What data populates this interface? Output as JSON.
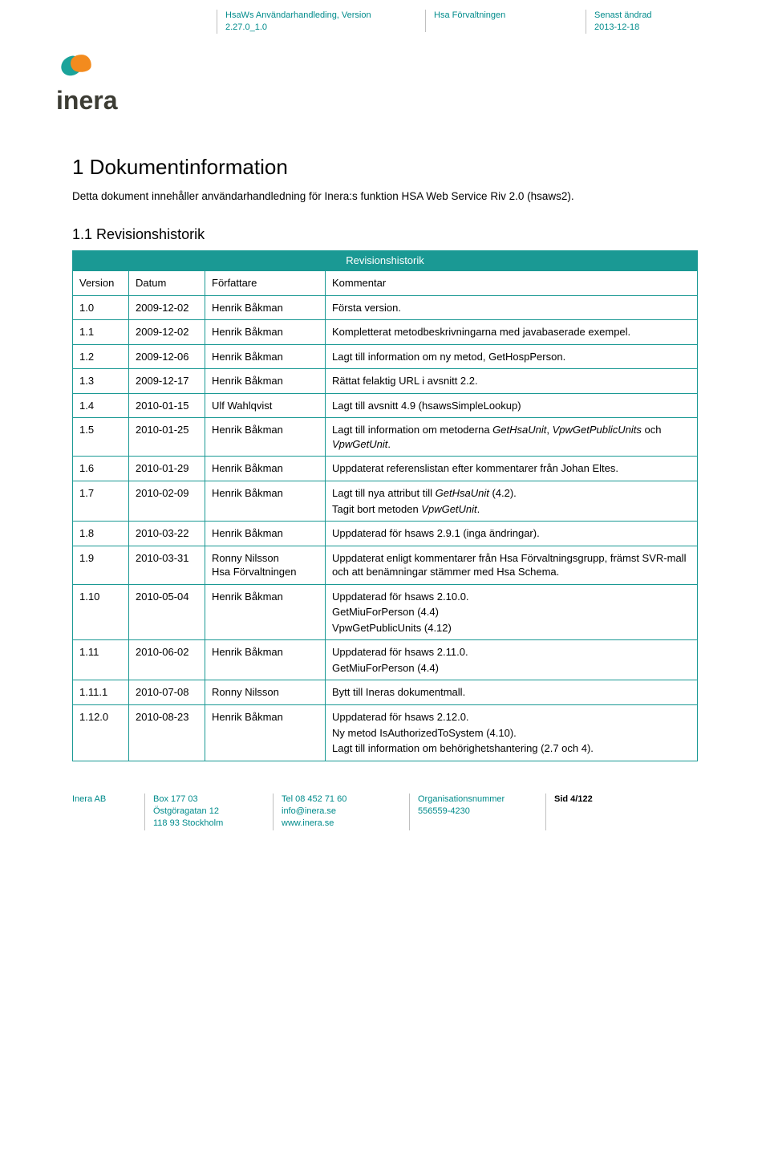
{
  "colors": {
    "teal": "#008b8b",
    "table_border": "#1a9994",
    "table_header_bg": "#1a9994",
    "table_header_fg": "#ffffff",
    "text": "#000000",
    "logo_teal": "#1aa39a",
    "logo_orange": "#f38b1e",
    "logo_text": "#3c3c34",
    "divider": "#c0c0c0"
  },
  "header": {
    "doc_title": "HsaWs Användarhandleding, Version 2.27.0_1.0",
    "dept": "Hsa Förvaltningen",
    "changed_label": "Senast ändrad",
    "changed_date": "2013-12-18"
  },
  "logo_text": "inera",
  "section": {
    "title": "1 Dokumentinformation",
    "intro": "Detta dokument innehåller användarhandledning för Inera:s funktion HSA Web Service Riv 2.0 (hsaws2).",
    "subtitle": "1.1 Revisionshistorik"
  },
  "table": {
    "banner": "Revisionshistorik",
    "columns": [
      "Version",
      "Datum",
      "Författare",
      "Kommentar"
    ],
    "col_widths": [
      "70px",
      "95px",
      "150px",
      "auto"
    ],
    "rows": [
      {
        "v": "1.0",
        "d": "2009-12-02",
        "a": "Henrik Båkman",
        "c": [
          "Första version."
        ]
      },
      {
        "v": "1.1",
        "d": "2009-12-02",
        "a": "Henrik Båkman",
        "c": [
          "Kompletterat metodbeskrivningarna med javabaserade exempel."
        ]
      },
      {
        "v": "1.2",
        "d": "2009-12-06",
        "a": "Henrik Båkman",
        "c": [
          "Lagt till information om ny metod, GetHospPerson."
        ]
      },
      {
        "v": "1.3",
        "d": "2009-12-17",
        "a": "Henrik Båkman",
        "c": [
          "Rättat felaktig URL i avsnitt 2.2."
        ]
      },
      {
        "v": "1.4",
        "d": "2010-01-15",
        "a": "Ulf Wahlqvist",
        "c": [
          "Lagt till avsnitt 4.9 (hsawsSimpleLookup)"
        ]
      },
      {
        "v": "1.5",
        "d": "2010-01-25",
        "a": "Henrik Båkman",
        "c": [
          "Lagt till information om metoderna <i>GetHsaUnit</i>, <i>VpwGetPublicUnits</i> och <i>VpwGetUnit</i>."
        ]
      },
      {
        "v": "1.6",
        "d": "2010-01-29",
        "a": "Henrik Båkman",
        "c": [
          "Uppdaterat referenslistan efter kommentarer från Johan Eltes."
        ]
      },
      {
        "v": "1.7",
        "d": "2010-02-09",
        "a": "Henrik Båkman",
        "c": [
          "Lagt till nya attribut till <i>GetHsaUnit</i> (4.2).",
          "Tagit bort metoden <i>VpwGetUnit</i>."
        ]
      },
      {
        "v": "1.8",
        "d": "2010-03-22",
        "a": "Henrik Båkman",
        "c": [
          "Uppdaterad för hsaws 2.9.1 (inga ändringar)."
        ]
      },
      {
        "v": "1.9",
        "d": "2010-03-31",
        "a": "Ronny Nilsson\nHsa Förvaltningen",
        "c": [
          "Uppdaterat enligt kommentarer från Hsa Förvaltningsgrupp, främst SVR-mall och att benämningar stämmer med Hsa Schema."
        ]
      },
      {
        "v": "1.10",
        "d": "2010-05-04",
        "a": "Henrik Båkman",
        "c": [
          "Uppdaterad för hsaws 2.10.0.",
          "GetMiuForPerson (4.4)",
          "VpwGetPublicUnits (4.12)"
        ]
      },
      {
        "v": "1.11",
        "d": "2010-06-02",
        "a": "Henrik Båkman",
        "c": [
          "Uppdaterad för hsaws 2.11.0.",
          "GetMiuForPerson (4.4)"
        ]
      },
      {
        "v": "1.11.1",
        "d": "2010-07-08",
        "a": "Ronny Nilsson",
        "c": [
          "Bytt till Ineras dokumentmall."
        ]
      },
      {
        "v": "1.12.0",
        "d": "2010-08-23",
        "a": "Henrik Båkman",
        "c": [
          "Uppdaterad för hsaws 2.12.0.",
          "Ny metod IsAuthorizedToSystem (4.10).",
          "Lagt till information om behörighetshantering (2.7 och 4)."
        ]
      }
    ]
  },
  "footer": {
    "company": "Inera AB",
    "addr1": "Box 177 03",
    "addr2": "Östgöragatan 12",
    "addr3": "118 93 Stockholm",
    "tel": "Tel 08 452 71 60",
    "email": "info@inera.se",
    "web": "www.inera.se",
    "orgnr_label": "Organisationsnummer",
    "orgnr": "556559-4230",
    "page": "Sid 4/122"
  }
}
